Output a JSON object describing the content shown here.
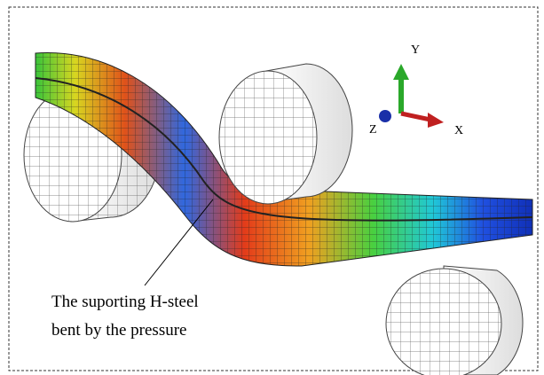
{
  "axes": {
    "y": "Y",
    "z": "Z",
    "x": "X"
  },
  "annotation": {
    "lines": [
      "The suporting H-steel",
      "bent by the pressure"
    ]
  }
}
